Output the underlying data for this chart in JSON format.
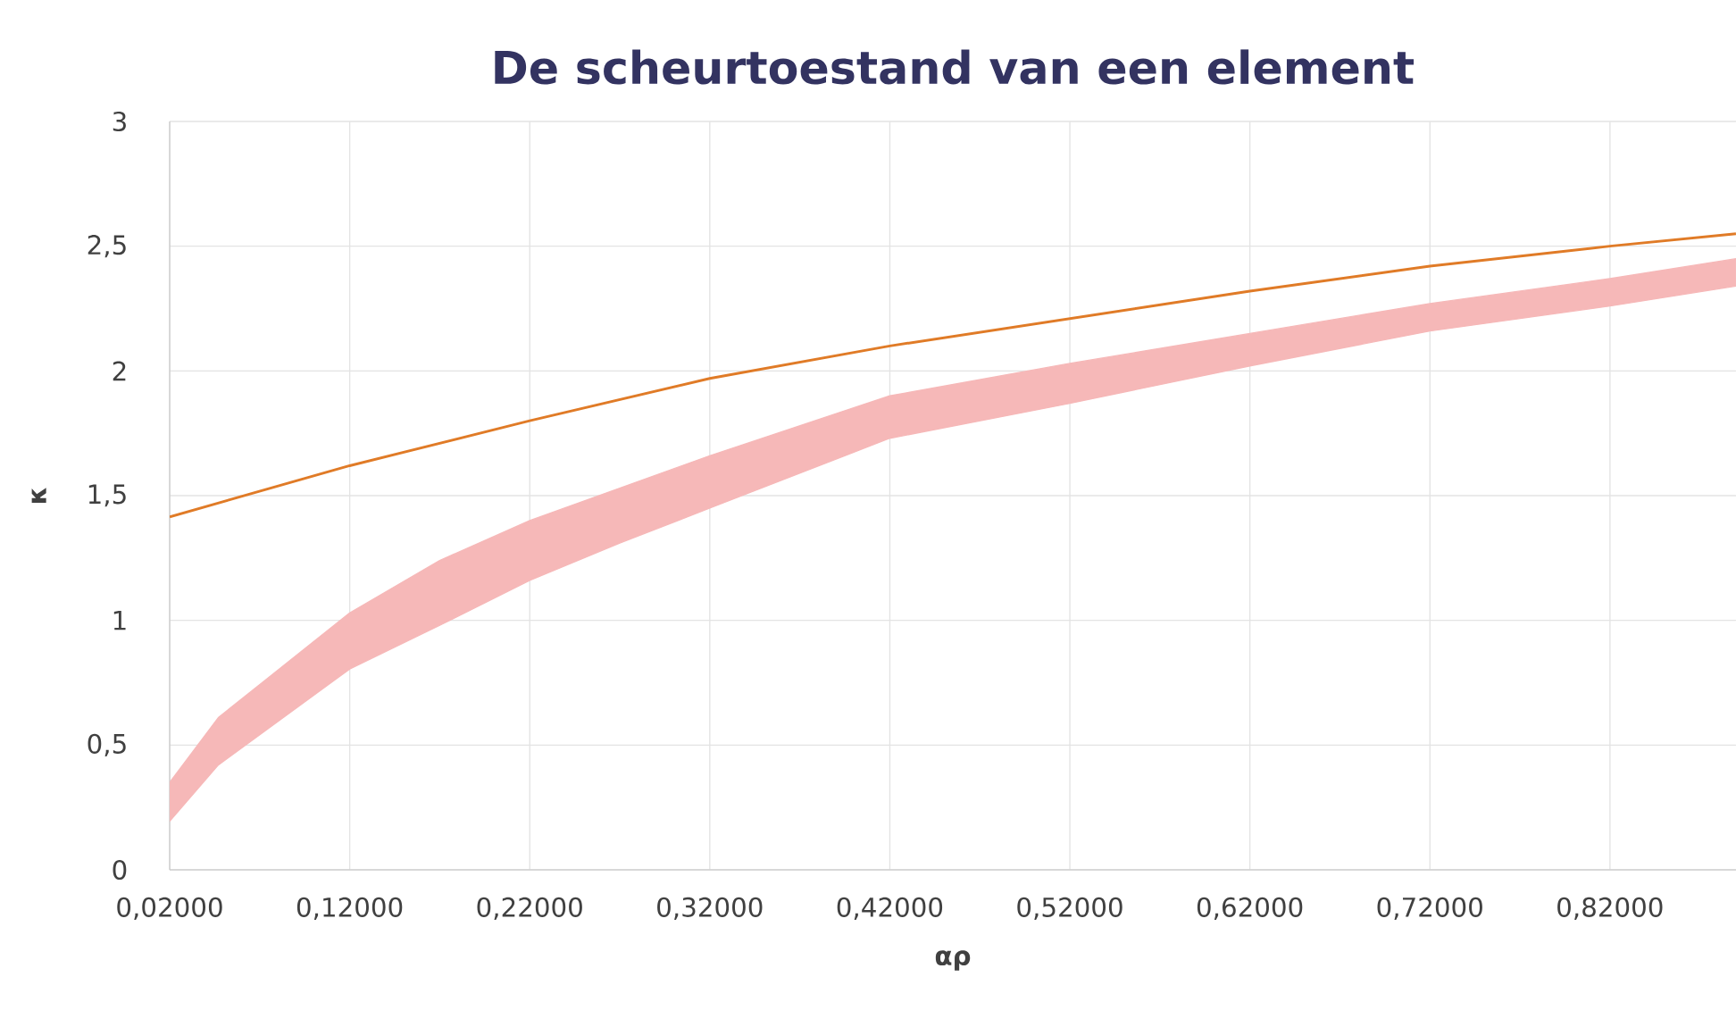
{
  "chart_data": {
    "type": "line",
    "title": "De scheurtoestand van een element",
    "xlabel": "αρ",
    "ylabel": "κ",
    "xlim": [
      0.02,
      0.89
    ],
    "ylim": [
      0,
      3
    ],
    "xticks": [
      {
        "value": 0.02,
        "label": "0,02000"
      },
      {
        "value": 0.12,
        "label": "0,12000"
      },
      {
        "value": 0.22,
        "label": "0,22000"
      },
      {
        "value": 0.32,
        "label": "0,32000"
      },
      {
        "value": 0.42,
        "label": "0,42000"
      },
      {
        "value": 0.52,
        "label": "0,52000"
      },
      {
        "value": 0.62,
        "label": "0,62000"
      },
      {
        "value": 0.72,
        "label": "0,72000"
      },
      {
        "value": 0.82,
        "label": "0,82000"
      }
    ],
    "yticks": [
      0,
      {
        "value": 0.5,
        "label": "0,5"
      },
      1,
      {
        "value": 1.5,
        "label": "1,5"
      },
      2,
      {
        "value": 2.5,
        "label": "2,5"
      },
      3
    ],
    "grid": true,
    "series": [
      {
        "color": "#e07b27",
        "x": [
          0.02,
          0.12,
          0.22,
          0.32,
          0.42,
          0.52,
          0.62,
          0.72,
          0.82,
          0.89
        ],
        "values": [
          1.415,
          1.62,
          1.8,
          1.97,
          2.1,
          2.21,
          2.32,
          2.42,
          2.5,
          2.55
        ]
      },
      {
        "color": "#f6b8b8",
        "x": [
          0.02,
          0.047,
          0.12,
          0.17,
          0.22,
          0.27,
          0.32,
          0.42,
          0.52,
          0.62,
          0.72,
          0.82,
          0.89
        ],
        "values": [
          null,
          null,
          null,
          null,
          null,
          null,
          null,
          null,
          null,
          null,
          null,
          null,
          null
        ],
        "upper": [
          0.35,
          0.61,
          1.03,
          1.24,
          1.4,
          1.53,
          1.66,
          1.9,
          2.03,
          2.15,
          2.27,
          2.37,
          2.45
        ],
        "lower": [
          0.195,
          0.42,
          0.805,
          0.98,
          1.16,
          1.31,
          1.45,
          1.73,
          1.87,
          2.02,
          2.16,
          2.26,
          2.34
        ]
      }
    ]
  }
}
